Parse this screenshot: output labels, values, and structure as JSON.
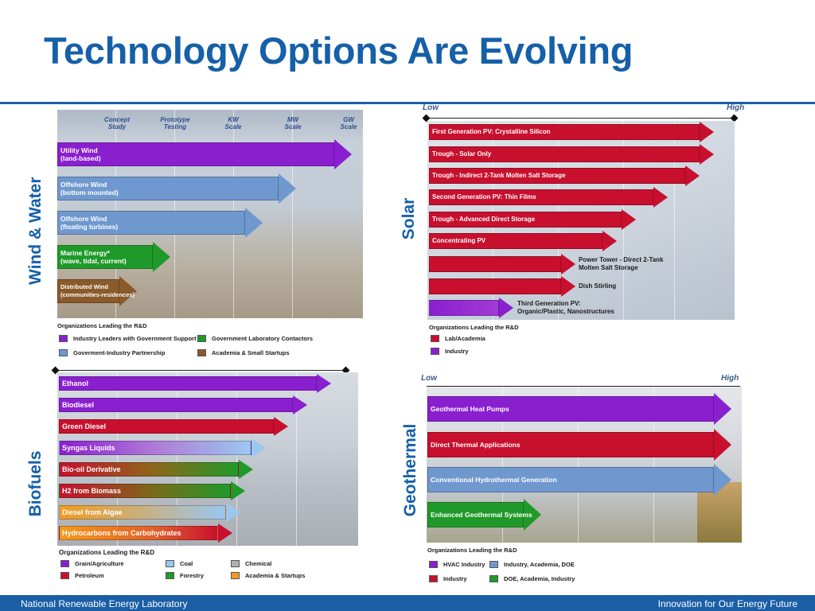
{
  "title": "Technology Options Are Evolving",
  "footer": {
    "left": "National Renewable Energy Laboratory",
    "right": "Innovation for Our Energy Future"
  },
  "wind_water": {
    "side_label": "Wind & Water",
    "stages": [
      "Concept\nStudy",
      "Prototype\nTesting",
      "KW\nScale",
      "MW\nScale",
      "GW\nScale"
    ],
    "arrows": [
      {
        "label": "Utility Wind\n(land-based)",
        "color": "#8a1fcf"
      },
      {
        "label": "Offshore Wind\n(bottom mounted)",
        "color": "#6f98cf"
      },
      {
        "label": "Offshore Wind\n(floating turbines)",
        "color": "#6f98cf"
      },
      {
        "label": "Marine Energy*\n(wave, tidal, current)",
        "color": "#1f9a2a"
      },
      {
        "label": "Distributed Wind\n(communities-residences)",
        "color": "#8b5a2b"
      }
    ],
    "legend_title": "Organizations Leading the R&D",
    "legend": [
      {
        "label": "Industry Leaders with Government Support",
        "color": "#8a1fcf"
      },
      {
        "label": "Government Laboratory Contactors",
        "color": "#1f9a2a"
      },
      {
        "label": "Goverment-Industry Partnership",
        "color": "#6f98cf"
      },
      {
        "label": "Academia & Small Startups",
        "color": "#8b5a2b"
      }
    ]
  },
  "solar": {
    "side_label": "Solar",
    "low": "Low",
    "high": "High",
    "arrows": [
      {
        "label": "First Generation PV: Crystalline Silicon",
        "color": "#c8102e"
      },
      {
        "label": "Trough - Solar Only",
        "color": "#c8102e"
      },
      {
        "label": "Trough - Indirect 2-Tank Molten Salt Storage",
        "color": "#c8102e"
      },
      {
        "label": "Second Generation PV: Thin Films",
        "color": "#c8102e"
      },
      {
        "label": "Trough - Advanced Direct Storage",
        "color": "#c8102e"
      },
      {
        "label": "Concentrating PV",
        "color": "#c8102e"
      },
      {
        "label": "Power Tower - Direct 2-Tank\nMolten Salt Storage",
        "color": "#c8102e"
      },
      {
        "label": "Dish Stirling",
        "color": "#c8102e"
      },
      {
        "label": "Third Generation PV:\nOrganic/Plastic, Nanostructures",
        "color": "#8a1fcf"
      }
    ],
    "legend_title": "Organizations Leading the R&D",
    "legend": [
      {
        "label": "Lab/Academia",
        "color": "#c8102e"
      },
      {
        "label": "Industry",
        "color": "#8a1fcf"
      }
    ]
  },
  "biofuels": {
    "side_label": "Biofuels",
    "arrows": [
      {
        "label": "Ethanol",
        "color": "#8a1fcf"
      },
      {
        "label": "Biodiesel",
        "color": "#8a1fcf"
      },
      {
        "label": "Green Diesel",
        "color": "#c8102e"
      },
      {
        "label": "Syngas Liquids",
        "color": "#8a1fcf"
      },
      {
        "label": "Bio-oil Derivative",
        "color": "#c8102e"
      },
      {
        "label": "H2 from Biomass",
        "color": "#c8102e"
      },
      {
        "label": "Diesel from Algae",
        "color": "#f39a1e"
      },
      {
        "label": "Hydrocarbons from Carbohydrates",
        "color": "#f39a1e"
      }
    ],
    "legend_title": "Organizations Leading the R&D",
    "legend": [
      {
        "label": "Grain/Agriculture",
        "color": "#8a1fcf"
      },
      {
        "label": "Coal",
        "color": "#9ac8f0"
      },
      {
        "label": "Chemical",
        "color": "#b0b0b0"
      },
      {
        "label": "Petroleum",
        "color": "#c8102e"
      },
      {
        "label": "Forestry",
        "color": "#1f9a2a"
      },
      {
        "label": "Academia & Startups",
        "color": "#f39a1e"
      }
    ]
  },
  "geothermal": {
    "side_label": "Geothermal",
    "low": "Low",
    "high": "High",
    "arrows": [
      {
        "label": "Geothermal Heat Pumps",
        "color": "#8a1fcf"
      },
      {
        "label": "Direct Thermal Applications",
        "color": "#c8102e"
      },
      {
        "label": "Conventional Hydrothermal Generation",
        "color": "#6f98cf"
      },
      {
        "label": "Enhanced Geothermal Systems",
        "color": "#1f9a2a"
      }
    ],
    "legend_title": "Organizations Leading the R&D",
    "legend": [
      {
        "label": "HVAC Industry",
        "color": "#8a1fcf"
      },
      {
        "label": "Industry, Academia, DOE",
        "color": "#6f98cf"
      },
      {
        "label": "Industry",
        "color": "#c8102e"
      },
      {
        "label": "DOE, Academia, Industry",
        "color": "#1f9a2a"
      }
    ]
  }
}
